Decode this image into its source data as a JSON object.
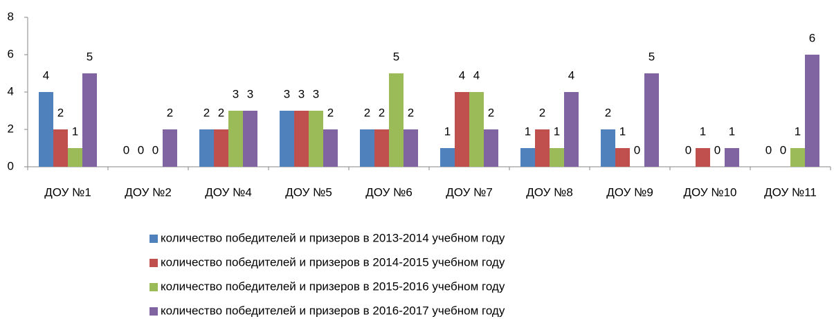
{
  "chart_data": {
    "type": "bar",
    "categories": [
      "ДОУ №1",
      "ДОУ №2",
      "ДОУ №4",
      "ДОУ №5",
      "ДОУ №6",
      "ДОУ №7",
      "ДОУ №8",
      "ДОУ №9",
      "ДОУ №10",
      "ДОУ №11"
    ],
    "series": [
      {
        "name": "количество победителей и призеров в 2013-2014 учебном году",
        "color": "#4f81bd",
        "values": [
          4,
          0,
          2,
          3,
          2,
          1,
          1,
          2,
          0,
          0
        ]
      },
      {
        "name": "количество победителей и призеров в 2014-2015 учебном году",
        "color": "#c0504d",
        "values": [
          2,
          0,
          2,
          3,
          2,
          4,
          2,
          1,
          1,
          0
        ]
      },
      {
        "name": "количество победителей и призеров в 2015-2016 учебном году",
        "color": "#9bbb59",
        "values": [
          1,
          0,
          3,
          3,
          5,
          4,
          1,
          0,
          0,
          1
        ]
      },
      {
        "name": "количество победителей и призеров в 2016-2017 учебном году",
        "color": "#8064a2",
        "values": [
          5,
          2,
          3,
          2,
          2,
          2,
          4,
          5,
          1,
          6
        ]
      }
    ],
    "ylim": [
      0,
      8
    ],
    "yticks": [
      0,
      2,
      4,
      6,
      8
    ],
    "grid": false,
    "legend": "bottom"
  }
}
